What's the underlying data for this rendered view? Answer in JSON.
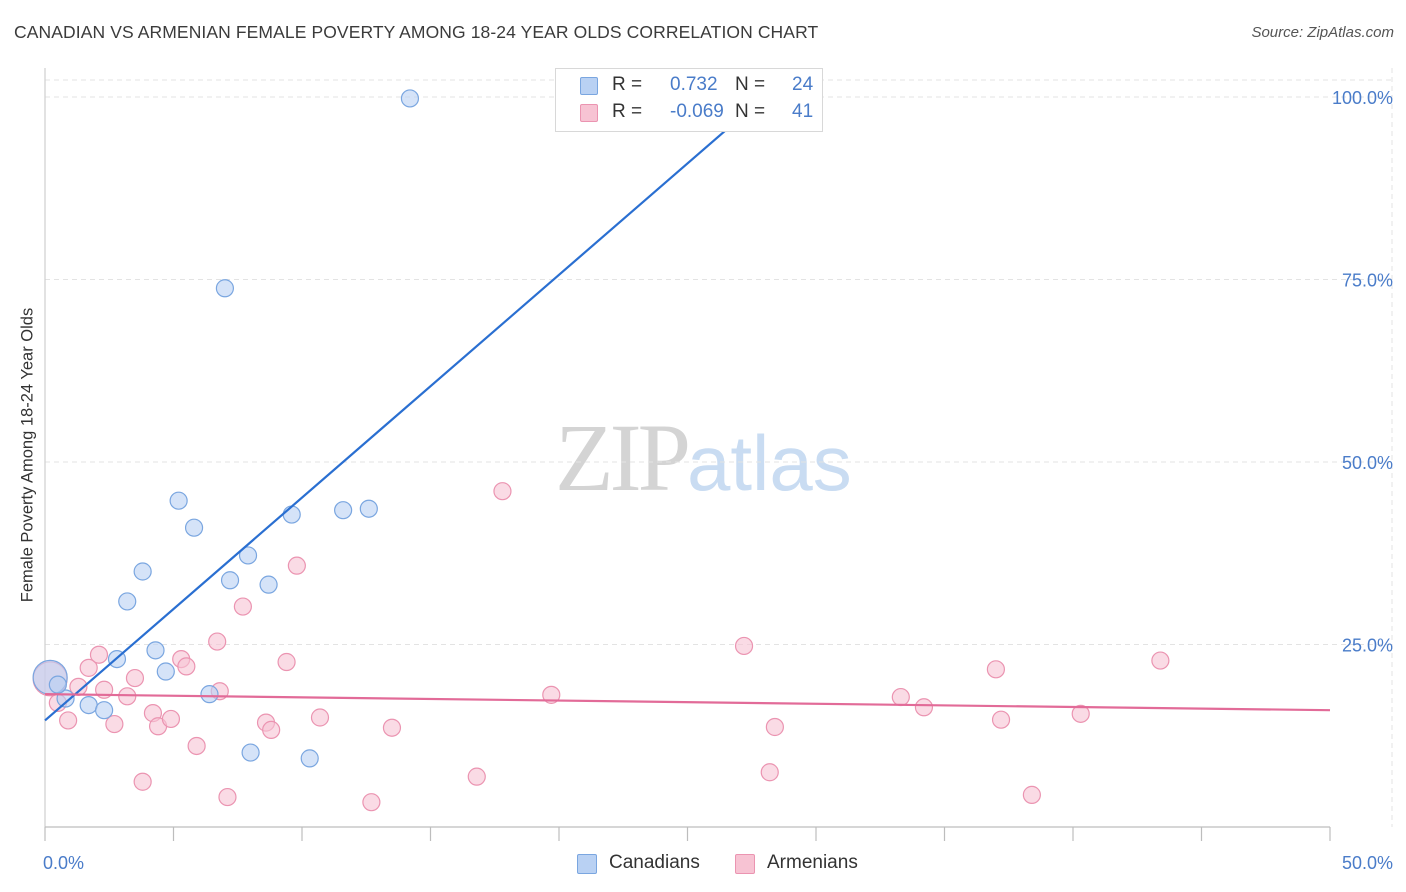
{
  "header": {
    "title": "CANADIAN VS ARMENIAN FEMALE POVERTY AMONG 18-24 YEAR OLDS CORRELATION CHART",
    "source": "Source: ZipAtlas.com"
  },
  "watermark": {
    "zip": "ZIP",
    "atlas": "atlas"
  },
  "legend": {
    "rows": [
      {
        "r_label": "R =",
        "r_value": " 0.732",
        "n_label": "N =",
        "n_value": "24"
      },
      {
        "r_label": "R =",
        "r_value": "-0.069",
        "n_label": "N =",
        "n_value": "41"
      }
    ]
  },
  "bottom_legend": {
    "canadians": "Canadians",
    "armenians": "Armenians"
  },
  "colors": {
    "canadians_fill": "#b9d1f3",
    "canadians_stroke": "#7aa6e0",
    "canadians_line": "#2a6fd1",
    "armenians_fill": "#f7c3d3",
    "armenians_stroke": "#eb94b1",
    "armenians_line": "#e26b98",
    "tick_text": "#4a7cc9",
    "grid": "#e3e3e3"
  },
  "chart_data": {
    "type": "scatter",
    "title": "CANADIAN VS ARMENIAN FEMALE POVERTY AMONG 18-24 YEAR OLDS CORRELATION CHART",
    "xlabel": "",
    "ylabel": "Female Poverty Among 18-24 Year Olds",
    "xlim": [
      0,
      50
    ],
    "ylim": [
      0,
      100
    ],
    "x_tick_labels": [
      "0.0%",
      "50.0%"
    ],
    "y_tick_labels": [
      "25.0%",
      "50.0%",
      "75.0%",
      "100.0%"
    ],
    "y_ticks": [
      25,
      50,
      75,
      100
    ],
    "grid": true,
    "legend_position": "top-center",
    "series": [
      {
        "name": "Canadians",
        "r": 0.732,
        "n": 24,
        "trend": {
          "x": [
            0,
            28.8
          ],
          "y": [
            14.6,
            102.5
          ]
        },
        "points": [
          {
            "x": 0.2,
            "y": 20.5,
            "big": true
          },
          {
            "x": 0.8,
            "y": 17.6
          },
          {
            "x": 1.7,
            "y": 16.7
          },
          {
            "x": 2.3,
            "y": 16.0
          },
          {
            "x": 2.8,
            "y": 23.0
          },
          {
            "x": 3.2,
            "y": 30.9
          },
          {
            "x": 3.8,
            "y": 35.0
          },
          {
            "x": 4.3,
            "y": 24.2
          },
          {
            "x": 4.7,
            "y": 21.3
          },
          {
            "x": 5.2,
            "y": 44.7
          },
          {
            "x": 5.8,
            "y": 41.0
          },
          {
            "x": 6.4,
            "y": 18.2
          },
          {
            "x": 7.0,
            "y": 73.8
          },
          {
            "x": 7.2,
            "y": 33.8
          },
          {
            "x": 7.9,
            "y": 37.2
          },
          {
            "x": 8.0,
            "y": 10.2
          },
          {
            "x": 8.7,
            "y": 33.2
          },
          {
            "x": 9.6,
            "y": 42.8
          },
          {
            "x": 10.3,
            "y": 9.4
          },
          {
            "x": 11.6,
            "y": 43.4
          },
          {
            "x": 12.6,
            "y": 43.6
          },
          {
            "x": 14.2,
            "y": 99.8
          },
          {
            "x": 28.3,
            "y": 100.0
          },
          {
            "x": 0.5,
            "y": 19.5
          }
        ]
      },
      {
        "name": "Armenians",
        "r": -0.069,
        "n": 41,
        "trend": {
          "x": [
            0,
            50
          ],
          "y": [
            18.2,
            16.0
          ]
        },
        "points": [
          {
            "x": 0.2,
            "y": 20.3,
            "big": true
          },
          {
            "x": 0.5,
            "y": 17.0
          },
          {
            "x": 0.9,
            "y": 14.6
          },
          {
            "x": 1.3,
            "y": 19.2
          },
          {
            "x": 1.7,
            "y": 21.8
          },
          {
            "x": 2.1,
            "y": 23.6
          },
          {
            "x": 2.3,
            "y": 18.8
          },
          {
            "x": 2.7,
            "y": 14.1
          },
          {
            "x": 3.2,
            "y": 17.9
          },
          {
            "x": 3.5,
            "y": 20.4
          },
          {
            "x": 3.8,
            "y": 6.2
          },
          {
            "x": 4.2,
            "y": 15.6
          },
          {
            "x": 4.4,
            "y": 13.8
          },
          {
            "x": 4.9,
            "y": 14.8
          },
          {
            "x": 5.3,
            "y": 23.0
          },
          {
            "x": 5.5,
            "y": 22.0
          },
          {
            "x": 5.9,
            "y": 11.1
          },
          {
            "x": 6.7,
            "y": 25.4
          },
          {
            "x": 6.8,
            "y": 18.6
          },
          {
            "x": 7.1,
            "y": 4.1
          },
          {
            "x": 7.7,
            "y": 30.2
          },
          {
            "x": 8.6,
            "y": 14.3
          },
          {
            "x": 8.8,
            "y": 13.3
          },
          {
            "x": 9.4,
            "y": 22.6
          },
          {
            "x": 9.8,
            "y": 35.8
          },
          {
            "x": 10.7,
            "y": 15.0
          },
          {
            "x": 12.7,
            "y": 3.4
          },
          {
            "x": 13.5,
            "y": 13.6
          },
          {
            "x": 16.8,
            "y": 6.9
          },
          {
            "x": 17.8,
            "y": 46.0
          },
          {
            "x": 19.7,
            "y": 18.1
          },
          {
            "x": 28.2,
            "y": 7.5
          },
          {
            "x": 27.2,
            "y": 24.8
          },
          {
            "x": 28.4,
            "y": 13.7
          },
          {
            "x": 33.3,
            "y": 17.8
          },
          {
            "x": 34.2,
            "y": 16.4
          },
          {
            "x": 37.0,
            "y": 21.6
          },
          {
            "x": 37.2,
            "y": 14.7
          },
          {
            "x": 38.4,
            "y": 4.4
          },
          {
            "x": 40.3,
            "y": 15.5
          },
          {
            "x": 43.4,
            "y": 22.8
          }
        ]
      }
    ]
  }
}
